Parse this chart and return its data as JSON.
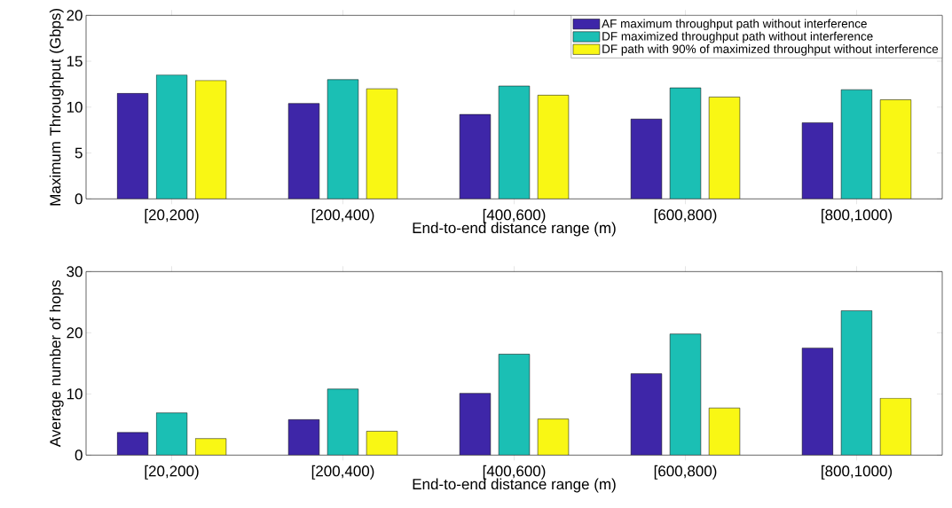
{
  "chart_data": [
    {
      "type": "bar",
      "xlabel": "End-to-end distance range (m)",
      "ylabel": "Maximum Throughput (Gbps)",
      "categories": [
        "[20,200)",
        "[200,400)",
        "[400,600)",
        "[600,800)",
        "[800,1000)"
      ],
      "series": [
        {
          "name": "AF maximum throughput path without interference",
          "color": "#3e26a8",
          "values": [
            11.5,
            10.4,
            9.2,
            8.7,
            8.3
          ]
        },
        {
          "name": "DF maximized throughput path without interference",
          "color": "#1bbfb4",
          "values": [
            13.5,
            13.0,
            12.3,
            12.1,
            11.9
          ]
        },
        {
          "name": "DF path with 90% of maximized throughput without interference",
          "color": "#f9f714",
          "values": [
            12.9,
            12.0,
            11.3,
            11.1,
            10.8
          ]
        }
      ],
      "ylim": [
        0,
        20
      ],
      "yticks": [
        0,
        5,
        10,
        15,
        20
      ],
      "grid": false,
      "legend": "top right"
    },
    {
      "type": "bar",
      "xlabel": "End-to-end distance range (m)",
      "ylabel": "Average number of hops",
      "categories": [
        "[20,200)",
        "[200,400)",
        "[400,600)",
        "[600,800)",
        "[800,1000)"
      ],
      "series": [
        {
          "color": "#3e26a8",
          "values": [
            3.7,
            5.8,
            10.1,
            13.3,
            17.5
          ]
        },
        {
          "color": "#1bbfb4",
          "values": [
            6.9,
            10.8,
            16.5,
            19.8,
            23.6
          ]
        },
        {
          "color": "#f9f714",
          "values": [
            2.7,
            3.9,
            5.9,
            7.7,
            9.3
          ]
        }
      ],
      "ylim": [
        0,
        30
      ],
      "yticks": [
        0,
        10,
        20,
        30
      ],
      "grid": false,
      "legend": false
    }
  ]
}
